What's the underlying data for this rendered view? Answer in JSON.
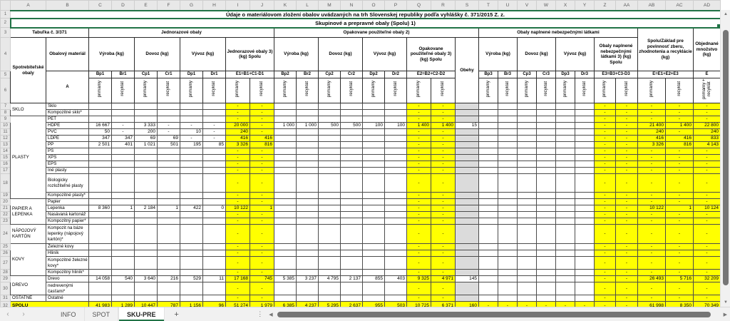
{
  "app": {
    "colors": {
      "accent_green": "#217346",
      "highlight_yellow": "#FFFF00",
      "obehy_grey": "#DBDBDB"
    },
    "sheet_tabs": [
      {
        "label": "INFO",
        "active": false
      },
      {
        "label": "SPOT",
        "active": false
      },
      {
        "label": "SKU-PRE",
        "active": true
      }
    ],
    "add_sheet_label": "+",
    "nav_prev": "‹",
    "nav_next": "›",
    "hscroll_left": "◀",
    "hscroll_right": "▶",
    "vscroll_up": "▲",
    "vscroll_down": "▼",
    "tab_divider": "⋮"
  },
  "column_letters": [
    "A",
    "B",
    "C",
    "D",
    "E",
    "F",
    "G",
    "H",
    "I",
    "J",
    "K",
    "L",
    "M",
    "N",
    "O",
    "P",
    "Q",
    "R",
    "S",
    "T",
    "U",
    "V",
    "W",
    "X",
    "Y",
    "Z",
    "AA",
    "AB",
    "AC",
    "AD"
  ],
  "gutter_rows": [
    "1",
    "2",
    "3",
    "4",
    "5",
    "6"
  ],
  "titles": {
    "row1": "Údaje o materiálovom zložení obalov uvádzaných na trh Slovenskej republiky podľa vyhlášky č. 371/2015 Z. z.",
    "row2": "Skupinové a prepravné obaly (Spolu) 1)"
  },
  "header": {
    "table_no": "Tabuľka č. 3/371",
    "sections": [
      "Jednorazové obaly",
      "Opakovane použiteľné obaly 2)",
      "Obaly naplnené nebezpečnými látkami"
    ],
    "col_a": "Spotrebiteľské obaly",
    "col_b": "Obalový materiál",
    "col_b_code": "A",
    "vyroba": "Výroba (kg)",
    "dovoz": "Dovoz (kg)",
    "vyvoz": "Vývoz (kg)",
    "spolu1": "Jednorazové obaly 3) (kg) Spolu",
    "spolu2": "Opakovane použiteľné obaly 3) (kg) Spolu",
    "spolu3": "Obaly naplnené nebezpečnými látkami 3) (kg) Spolu",
    "obehy": "Obehy",
    "spolu_zaklad": "Spolu/Základ pre povinnosť zberu, zhodnotenia a recyklácie (kg)",
    "objednane": "Objednané množstvo (kg)",
    "codes1": [
      "Bp1",
      "Br1",
      "Cp1",
      "Cr1",
      "Dp1",
      "Dr1"
    ],
    "codes2": [
      "Bp2",
      "Br2",
      "Cp2",
      "Cr2",
      "Dp2",
      "Dr2"
    ],
    "codes3": [
      "Bp3",
      "Br3",
      "Cp3",
      "Cr3",
      "Dp3",
      "Dr3"
    ],
    "formula1": "E1=B1+C1-D1",
    "formula2": "E2=B2+C2-D2",
    "formula3": "E3=B3+C3-D3",
    "formula_total": "E=E1+E2+E3",
    "formula_ordered": "E",
    "primarny": "primárny",
    "recyklat": "recyklát",
    "prim_rec": "primárny + recyklát"
  },
  "rows": [
    {
      "n": 7,
      "group": "SKLO",
      "groupSpan": 2,
      "material": "Sklo",
      "c": [
        "",
        "",
        "",
        "",
        "",
        "",
        "-",
        "-",
        "",
        "",
        "",
        "",
        "",
        "",
        "-",
        "-",
        "",
        "",
        "",
        "",
        "",
        "",
        "",
        "-",
        "-",
        "-",
        "-",
        "-"
      ]
    },
    {
      "n": 8,
      "material": "Kompozitné sklo*",
      "c": [
        "",
        "",
        "",
        "",
        "",
        "",
        "-",
        "-",
        "",
        "",
        "",
        "",
        "",
        "",
        "-",
        "-",
        "",
        "",
        "",
        "",
        "",
        "",
        "",
        "-",
        "-",
        "-",
        "-",
        "-"
      ]
    },
    {
      "n": 9,
      "group": "PLASTY",
      "groupSpan": 11,
      "material": "PET",
      "c": [
        "",
        "",
        "",
        "",
        "",
        "",
        "-",
        "-",
        "",
        "",
        "",
        "",
        "",
        "",
        "-",
        "-",
        "",
        "",
        "",
        "",
        "",
        "",
        "",
        "-",
        "-",
        "-",
        "-",
        "-"
      ]
    },
    {
      "n": 10,
      "material": "HDPE",
      "c": [
        "16 667",
        "-",
        "3 333",
        "-",
        "-",
        "-",
        "20 000",
        "-",
        "1 000",
        "1 000",
        "500",
        "500",
        "100",
        "100",
        "1 400",
        "1 400",
        "15",
        "",
        "",
        "",
        "",
        "",
        "",
        "-",
        "-",
        "21 400",
        "1 400",
        "22 800"
      ]
    },
    {
      "n": 11,
      "material": "PVC",
      "c": [
        "50",
        "-",
        "200",
        "-",
        "10",
        "-",
        "240",
        "-",
        "",
        "",
        "",
        "",
        "",
        "",
        "-",
        "-",
        "",
        "",
        "",
        "",
        "",
        "",
        "",
        "-",
        "-",
        "240",
        "-",
        "240"
      ]
    },
    {
      "n": 12,
      "material": "LDPE",
      "c": [
        "347",
        "347",
        "69",
        "69",
        "-",
        "-",
        "416",
        "416",
        "",
        "",
        "",
        "",
        "",
        "",
        "-",
        "-",
        "",
        "",
        "",
        "",
        "",
        "",
        "",
        "-",
        "-",
        "416",
        "416",
        "833"
      ]
    },
    {
      "n": 13,
      "material": "PP",
      "c": [
        "2 501",
        "401",
        "1 021",
        "501",
        "195",
        "85",
        "3 326",
        "816",
        "",
        "",
        "",
        "",
        "",
        "",
        "-",
        "-",
        "",
        "",
        "",
        "",
        "",
        "",
        "",
        "-",
        "-",
        "3 326",
        "816",
        "4 143"
      ]
    },
    {
      "n": 14,
      "material": "PS",
      "c": [
        "",
        "",
        "",
        "",
        "",
        "",
        "-",
        "-",
        "",
        "",
        "",
        "",
        "",
        "",
        "-",
        "-",
        "",
        "",
        "",
        "",
        "",
        "",
        "",
        "-",
        "-",
        "-",
        "-",
        "-"
      ]
    },
    {
      "n": 15,
      "material": "XPS",
      "c": [
        "",
        "",
        "",
        "",
        "",
        "",
        "-",
        "-",
        "",
        "",
        "",
        "",
        "",
        "",
        "-",
        "-",
        "",
        "",
        "",
        "",
        "",
        "",
        "",
        "-",
        "-",
        "-",
        "-",
        "-"
      ]
    },
    {
      "n": 16,
      "material": "EPS",
      "c": [
        "",
        "",
        "",
        "",
        "",
        "",
        "-",
        "-",
        "",
        "",
        "",
        "",
        "",
        "",
        "-",
        "-",
        "",
        "",
        "",
        "",
        "",
        "",
        "",
        "-",
        "-",
        "-",
        "-",
        "-"
      ]
    },
    {
      "n": 17,
      "material": "Iné plasty",
      "c": [
        "",
        "",
        "",
        "",
        "",
        "",
        "-",
        "-",
        "",
        "",
        "",
        "",
        "",
        "",
        "-",
        "-",
        "",
        "",
        "",
        "",
        "",
        "",
        "",
        "-",
        "-",
        "-",
        "-",
        "-"
      ]
    },
    {
      "n": 18,
      "material": "Biologicky rozložiteľné plasty",
      "c": [
        "",
        "",
        "",
        "",
        "",
        "",
        "-",
        "-",
        "",
        "",
        "",
        "",
        "",
        "",
        "-",
        "-",
        "",
        "",
        "",
        "",
        "",
        "",
        "",
        "-",
        "-",
        "-",
        "-",
        "-"
      ]
    },
    {
      "n": 19,
      "material": "Kompozitné plasty*",
      "c": [
        "",
        "",
        "",
        "",
        "",
        "",
        "-",
        "-",
        "",
        "",
        "",
        "",
        "",
        "",
        "-",
        "-",
        "",
        "",
        "",
        "",
        "",
        "",
        "",
        "-",
        "-",
        "-",
        "-",
        "-"
      ]
    },
    {
      "n": 20,
      "group": "PAPIER A LEPENKA",
      "groupSpan": 4,
      "material": "Papier",
      "c": [
        "",
        "",
        "",
        "",
        "",
        "",
        "-",
        "-",
        "",
        "",
        "",
        "",
        "",
        "",
        "-",
        "-",
        "",
        "",
        "",
        "",
        "",
        "",
        "",
        "-",
        "-",
        "-",
        "-",
        "-"
      ]
    },
    {
      "n": 21,
      "material": "Lepenka",
      "c": [
        "8 360",
        "1",
        "2 184",
        "1",
        "422",
        "0",
        "10 122",
        "1",
        "",
        "",
        "",
        "",
        "",
        "",
        "-",
        "-",
        "",
        "",
        "",
        "",
        "",
        "",
        "",
        "-",
        "-",
        "10 122",
        "1",
        "10 124"
      ]
    },
    {
      "n": 22,
      "material": "Nasávaná kartonáž",
      "c": [
        "",
        "",
        "",
        "",
        "",
        "",
        "-",
        "-",
        "",
        "",
        "",
        "",
        "",
        "",
        "-",
        "-",
        "",
        "",
        "",
        "",
        "",
        "",
        "",
        "-",
        "-",
        "-",
        "-",
        "-"
      ]
    },
    {
      "n": 23,
      "material": "Kompozitný papier*",
      "c": [
        "",
        "",
        "",
        "",
        "",
        "",
        "-",
        "-",
        "",
        "",
        "",
        "",
        "",
        "",
        "-",
        "-",
        "",
        "",
        "",
        "",
        "",
        "",
        "",
        "-",
        "-",
        "-",
        "-",
        "-"
      ]
    },
    {
      "n": 24,
      "group": "NÁPOJOVÝ KARTÓN",
      "groupSpan": 1,
      "material": "Kompozit na báze lepenky (nápojový kartón)*",
      "c": [
        "",
        "",
        "",
        "",
        "",
        "",
        "-",
        "-",
        "",
        "",
        "",
        "",
        "",
        "",
        "-",
        "-",
        "",
        "",
        "",
        "",
        "",
        "",
        "",
        "-",
        "-",
        "-",
        "-",
        "-"
      ]
    },
    {
      "n": 25,
      "group": "KOVY",
      "groupSpan": 4,
      "material": "Železné kovy",
      "c": [
        "",
        "",
        "",
        "",
        "",
        "",
        "-",
        "-",
        "",
        "",
        "",
        "",
        "",
        "",
        "-",
        "-",
        "",
        "",
        "",
        "",
        "",
        "",
        "",
        "-",
        "-",
        "-",
        "-",
        "-"
      ]
    },
    {
      "n": 26,
      "material": "Hliník",
      "c": [
        "",
        "",
        "",
        "",
        "",
        "",
        "-",
        "-",
        "",
        "",
        "",
        "",
        "",
        "",
        "-",
        "-",
        "",
        "",
        "",
        "",
        "",
        "",
        "",
        "-",
        "-",
        "-",
        "-",
        "-"
      ]
    },
    {
      "n": 27,
      "material": "Kompozitné železné kovy*",
      "c": [
        "",
        "",
        "",
        "",
        "",
        "",
        "-",
        "-",
        "",
        "",
        "",
        "",
        "",
        "",
        "-",
        "-",
        "",
        "",
        "",
        "",
        "",
        "",
        "",
        "-",
        "-",
        "-",
        "-",
        "-"
      ]
    },
    {
      "n": 28,
      "material": "Kompozitný hliník*",
      "c": [
        "",
        "",
        "",
        "",
        "",
        "",
        "-",
        "-",
        "",
        "",
        "",
        "",
        "",
        "",
        "-",
        "-",
        "",
        "",
        "",
        "",
        "",
        "",
        "",
        "-",
        "-",
        "-",
        "-",
        "-"
      ]
    },
    {
      "n": 29,
      "group": "DREVO",
      "groupSpan": 2,
      "material": "Drevo",
      "c": [
        "14 058",
        "540",
        "3 640",
        "216",
        "529",
        "11",
        "17 168",
        "745",
        "5 385",
        "3 237",
        "4 795",
        "2 137",
        "855",
        "403",
        "9 325",
        "4 971",
        "145",
        "",
        "",
        "",
        "",
        "",
        "",
        "-",
        "-",
        "26 493",
        "5 716",
        "32 209"
      ]
    },
    {
      "n": 30,
      "material": "nedrevenými časťami*",
      "c": [
        "",
        "",
        "",
        "",
        "",
        "",
        "-",
        "-",
        "",
        "",
        "",
        "",
        "",
        "",
        "-",
        "-",
        "",
        "",
        "",
        "",
        "",
        "",
        "",
        "-",
        "-",
        "-",
        "-",
        "-"
      ]
    },
    {
      "n": 31,
      "group": "OSTATNÉ",
      "groupSpan": 1,
      "material": "Ostatné",
      "c": [
        "",
        "",
        "",
        "",
        "",
        "",
        "-",
        "-",
        "",
        "",
        "",
        "",
        "",
        "",
        "-",
        "-",
        "",
        "",
        "",
        "",
        "",
        "",
        "",
        "-",
        "-",
        "-",
        "-",
        "-"
      ]
    },
    {
      "n": 32,
      "group": "SPOLU",
      "total": true,
      "c": [
        "41 983",
        "1 289",
        "10 447",
        "787",
        "1 156",
        "96",
        "51 274",
        "1 979",
        "6 385",
        "4 237",
        "5 295",
        "2 637",
        "955",
        "503",
        "10 725",
        "6 371",
        "160",
        "-",
        "-",
        "-",
        "-",
        "-",
        "-",
        "-",
        "-",
        "61 998",
        "8 350",
        "70 349"
      ]
    }
  ]
}
